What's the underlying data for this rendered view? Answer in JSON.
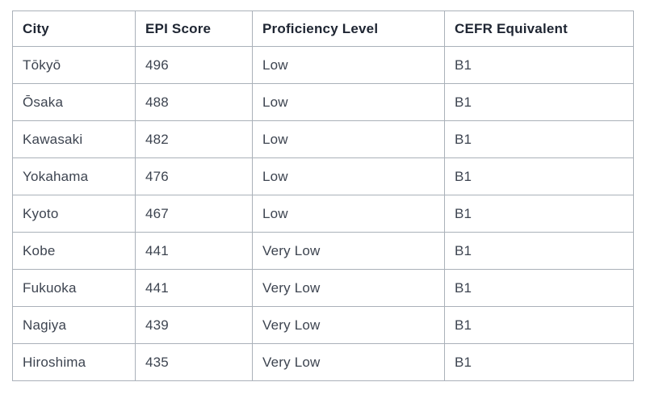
{
  "chart_data": {
    "type": "table",
    "columns": [
      "City",
      "EPI Score",
      "Proficiency Level",
      "CEFR Equivalent"
    ],
    "rows": [
      [
        "Tōkyō",
        "496",
        "Low",
        "B1"
      ],
      [
        "Ōsaka",
        "488",
        "Low",
        "B1"
      ],
      [
        "Kawasaki",
        "482",
        "Low",
        "B1"
      ],
      [
        "Yokahama",
        "476",
        "Low",
        "B1"
      ],
      [
        "Kyoto",
        "467",
        "Low",
        "B1"
      ],
      [
        "Kobe",
        "441",
        "Very Low",
        "B1"
      ],
      [
        "Fukuoka",
        "441",
        "Very Low",
        "B1"
      ],
      [
        "Nagiya",
        "439",
        "Very Low",
        "B1"
      ],
      [
        "Hiroshima",
        "435",
        "Very Low",
        "B1"
      ]
    ]
  },
  "colors": {
    "border": "#aab1b9",
    "header_text": "#1e2532",
    "body_text": "#3d4450",
    "background": "#ffffff"
  }
}
